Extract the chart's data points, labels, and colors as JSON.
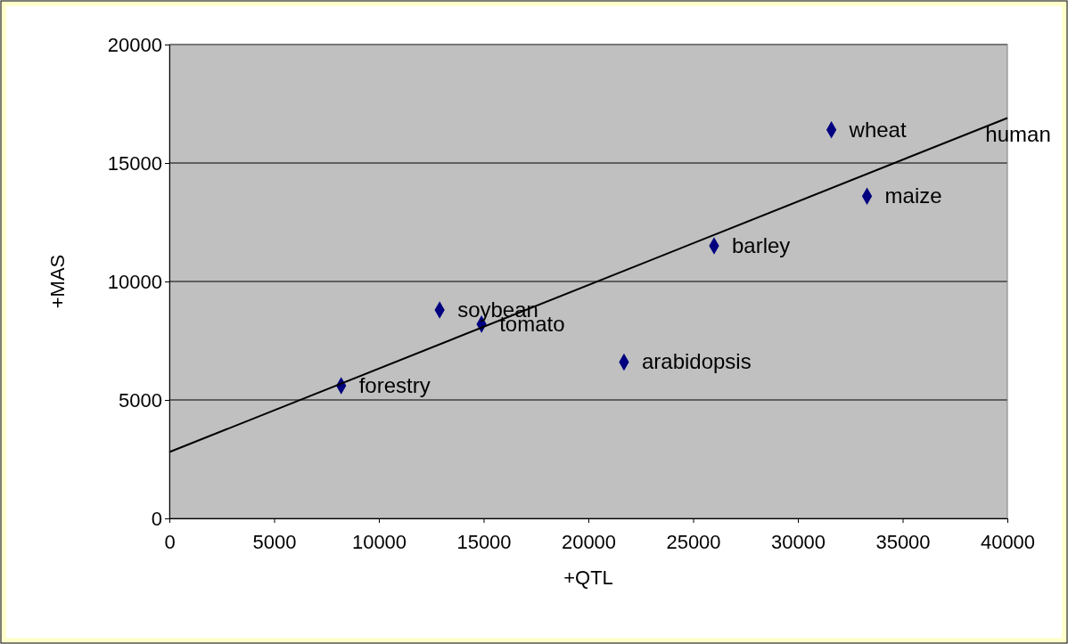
{
  "chart_data": {
    "type": "scatter",
    "xlabel": "+QTL",
    "ylabel": "+MAS",
    "xlim": [
      0,
      40000
    ],
    "xticks": [
      0,
      5000,
      10000,
      15000,
      20000,
      25000,
      30000,
      35000,
      40000
    ],
    "ylim": [
      0,
      20000
    ],
    "yticks": [
      0,
      5000,
      10000,
      15000,
      20000
    ],
    "grid": "y",
    "marker": "diamond",
    "series": [
      {
        "color": "#000080",
        "x": [
          8200,
          12900,
          14900,
          21700,
          26000,
          31600,
          33300
        ],
        "values": [
          5600,
          8800,
          8200,
          6600,
          11500,
          16400,
          13600
        ]
      },
      {
        "type": "line",
        "color": "#000000",
        "x": [
          0,
          40000
        ],
        "values": [
          2800,
          16900
        ],
        "marker": "none"
      }
    ],
    "annotations": [
      {
        "text": "forestry",
        "x": 8200,
        "y": 5600
      },
      {
        "text": "soybean",
        "x": 12900,
        "y": 8800
      },
      {
        "text": "tomato",
        "x": 14900,
        "y": 8200
      },
      {
        "text": "arabidopsis",
        "x": 21700,
        "y": 6600
      },
      {
        "text": "barley",
        "x": 26000,
        "y": 11500
      },
      {
        "text": "wheat",
        "x": 31600,
        "y": 16400
      },
      {
        "text": "maize",
        "x": 33300,
        "y": 13600
      },
      {
        "text": "human",
        "x": 38100,
        "y": 16200
      }
    ]
  }
}
